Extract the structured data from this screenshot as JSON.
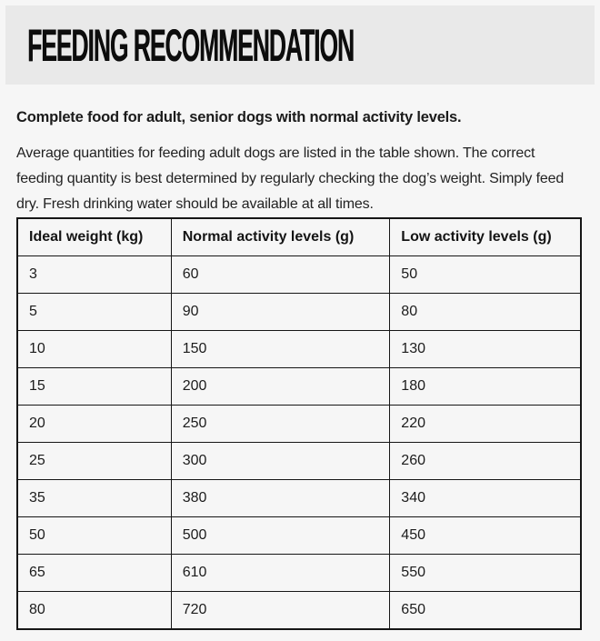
{
  "page": {
    "background": "#f6f6f6",
    "band_background": "#e9e9e9",
    "text_color": "#212121",
    "border_color": "#161616"
  },
  "header": {
    "title": "FEEDING RECOMMENDATION"
  },
  "intro": {
    "lead": "Complete food for adult, senior dogs with normal activity levels.",
    "paragraph": "Average quantities for feeding adult dogs are listed in the table shown. The correct feeding quantity is best determined by regularly checking the dog’s weight. Simply feed dry. Fresh drinking water should be available at all times."
  },
  "table": {
    "columns": [
      "Ideal weight (kg)",
      "Normal activity levels (g)",
      "Low activity levels (g)"
    ],
    "rows": [
      [
        "3",
        "60",
        "50"
      ],
      [
        "5",
        "90",
        "80"
      ],
      [
        "10",
        "150",
        "130"
      ],
      [
        "15",
        "200",
        "180"
      ],
      [
        "20",
        "250",
        "220"
      ],
      [
        "25",
        "300",
        "260"
      ],
      [
        "35",
        "380",
        "340"
      ],
      [
        "50",
        "500",
        "450"
      ],
      [
        "65",
        "610",
        "550"
      ],
      [
        "80",
        "720",
        "650"
      ]
    ]
  }
}
